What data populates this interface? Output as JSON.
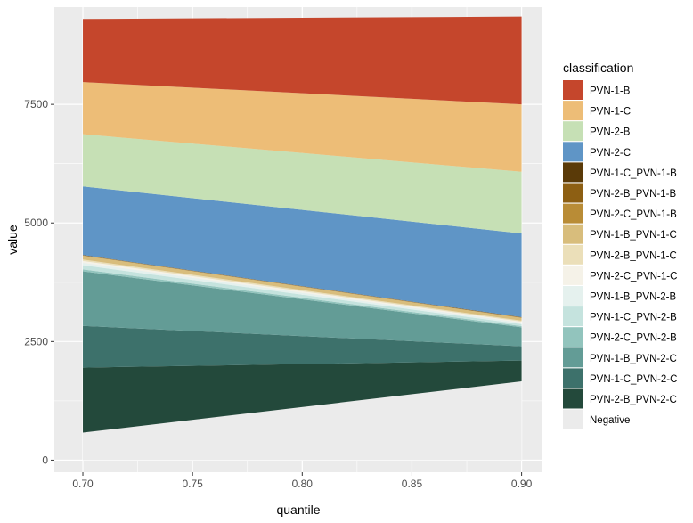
{
  "chart_data": {
    "type": "area",
    "stacked": true,
    "title": "",
    "xlabel": "quantile",
    "ylabel": "value",
    "xlim": [
      0.687,
      0.9095
    ],
    "ylim": [
      -255,
      9550
    ],
    "x_ticks": [
      0.7,
      0.75,
      0.8,
      0.85,
      0.9
    ],
    "x_tick_labels": [
      "0.70",
      "0.75",
      "0.80",
      "0.85",
      "0.90"
    ],
    "y_ticks": [
      0,
      2500,
      5000,
      7500
    ],
    "y_tick_labels": [
      "0",
      "2500",
      "5000",
      "7500"
    ],
    "x": [
      0.7,
      0.9
    ],
    "legend_title": "classification",
    "legend_position": "right",
    "panel_background": "#ebebeb",
    "grid_color": "#ffffff",
    "series": [
      {
        "name": "Negative",
        "color": "#ebebeb",
        "values": [
          580,
          1660
        ]
      },
      {
        "name": "PVN-2-B_PVN-2-C",
        "color": "#23493b",
        "values": [
          1370,
          440
        ]
      },
      {
        "name": "PVN-1-C_PVN-2-C",
        "color": "#3d716b",
        "values": [
          880,
          300
        ]
      },
      {
        "name": "PVN-1-B_PVN-2-C",
        "color": "#639c96",
        "values": [
          1150,
          400
        ]
      },
      {
        "name": "PVN-2-C_PVN-2-B",
        "color": "#92c4bd",
        "values": [
          40,
          25
        ]
      },
      {
        "name": "PVN-1-C_PVN-2-B",
        "color": "#c5e3de",
        "values": [
          90,
          40
        ]
      },
      {
        "name": "PVN-1-B_PVN-2-B",
        "color": "#e5f1ee",
        "values": [
          50,
          30
        ]
      },
      {
        "name": "PVN-2-C_PVN-1-C",
        "color": "#f5f2e8",
        "values": [
          40,
          25
        ]
      },
      {
        "name": "PVN-2-B_PVN-1-C",
        "color": "#ebdfb9",
        "values": [
          30,
          20
        ]
      },
      {
        "name": "PVN-1-B_PVN-1-C",
        "color": "#d8bd7c",
        "values": [
          80,
          60
        ]
      },
      {
        "name": "PVN-2-C_PVN-1-B",
        "color": "#b98c36",
        "values": [
          5,
          5
        ]
      },
      {
        "name": "PVN-2-B_PVN-1-B",
        "color": "#8d5f13",
        "values": [
          5,
          5
        ]
      },
      {
        "name": "PVN-1-C_PVN-1-B",
        "color": "#5a3a08",
        "values": [
          5,
          5
        ]
      },
      {
        "name": "PVN-2-C",
        "color": "#5f95c6",
        "values": [
          1445,
          1765
        ]
      },
      {
        "name": "PVN-2-B",
        "color": "#c6e0b5",
        "values": [
          1100,
          1300
        ]
      },
      {
        "name": "PVN-1-C",
        "color": "#edbd77",
        "values": [
          1100,
          1420
        ]
      },
      {
        "name": "PVN-1-B",
        "color": "#c5462c",
        "values": [
          1330,
          1850
        ]
      }
    ],
    "legend_order": [
      "PVN-1-B",
      "PVN-1-C",
      "PVN-2-B",
      "PVN-2-C",
      "PVN-1-C_PVN-1-B",
      "PVN-2-B_PVN-1-B",
      "PVN-2-C_PVN-1-B",
      "PVN-1-B_PVN-1-C",
      "PVN-2-B_PVN-1-C",
      "PVN-2-C_PVN-1-C",
      "PVN-1-B_PVN-2-B",
      "PVN-1-C_PVN-2-B",
      "PVN-2-C_PVN-2-B",
      "PVN-1-B_PVN-2-C",
      "PVN-1-C_PVN-2-C",
      "PVN-2-B_PVN-2-C",
      "Negative"
    ]
  }
}
